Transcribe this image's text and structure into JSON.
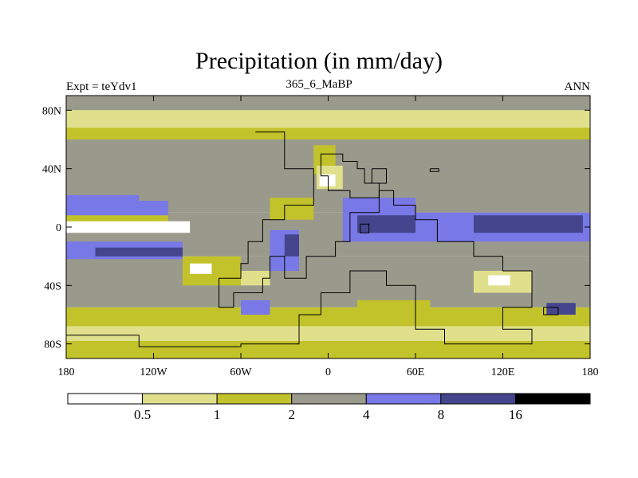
{
  "chart_data": {
    "type": "heatmap",
    "title": "Precipitation (in mm/day)",
    "subtitle_left": "Expt = teYdv1",
    "subtitle_center": "365_6_MaBP",
    "subtitle_right": "ANN",
    "x_ticks": [
      {
        "value": -180,
        "label": "180"
      },
      {
        "value": -120,
        "label": "120W"
      },
      {
        "value": -60,
        "label": "60W"
      },
      {
        "value": 0,
        "label": "0"
      },
      {
        "value": 60,
        "label": "60E"
      },
      {
        "value": 120,
        "label": "120E"
      },
      {
        "value": 180,
        "label": "180"
      }
    ],
    "y_ticks": [
      {
        "value": 80,
        "label": "80N"
      },
      {
        "value": 40,
        "label": "40N"
      },
      {
        "value": 0,
        "label": "0"
      },
      {
        "value": -40,
        "label": "40S"
      },
      {
        "value": -80,
        "label": "80S"
      }
    ],
    "xlim": [
      -180,
      180
    ],
    "ylim": [
      -90,
      90
    ],
    "colorbar": {
      "colors": [
        "#ffffff",
        "#e0e08c",
        "#c2c22a",
        "#9a9a8c",
        "#7878e6",
        "#45458e",
        "#000000"
      ],
      "boundaries": [
        "0.5",
        "1",
        "2",
        "4",
        "8",
        "16"
      ]
    },
    "zonal_bands": [
      {
        "lat_top": 90,
        "lat_bottom": 80,
        "level": 3
      },
      {
        "lat_top": 80,
        "lat_bottom": 68,
        "level": 1
      },
      {
        "lat_top": 68,
        "lat_bottom": 60,
        "level": 2
      },
      {
        "lat_top": 60,
        "lat_bottom": 10,
        "level": 3
      },
      {
        "lat_top": 10,
        "lat_bottom": -20,
        "level": 3
      },
      {
        "lat_top": -20,
        "lat_bottom": -55,
        "level": 3
      },
      {
        "lat_top": -55,
        "lat_bottom": -68,
        "level": 2
      },
      {
        "lat_top": -68,
        "lat_bottom": -78,
        "level": 1
      },
      {
        "lat_top": -78,
        "lat_bottom": -90,
        "level": 2
      }
    ],
    "patches": [
      {
        "lon": [
          -180,
          -110,
          -110,
          -180
        ],
        "lat": [
          18,
          18,
          2,
          2
        ],
        "level": 4
      },
      {
        "lon": [
          -180,
          -110,
          -110,
          -180
        ],
        "lat": [
          8,
          8,
          -2,
          -2
        ],
        "level": 2
      },
      {
        "lon": [
          -180,
          -95,
          -95,
          -180
        ],
        "lat": [
          4,
          4,
          -4,
          -4
        ],
        "level": 0
      },
      {
        "lon": [
          -180,
          -100,
          -100,
          -180
        ],
        "lat": [
          -10,
          -10,
          -22,
          -22
        ],
        "level": 4
      },
      {
        "lon": [
          -160,
          -100,
          -100,
          -160
        ],
        "lat": [
          -14,
          -14,
          -20,
          -20
        ],
        "level": 5
      },
      {
        "lon": [
          -40,
          -20,
          -20,
          -40
        ],
        "lat": [
          -2,
          -2,
          -30,
          -30
        ],
        "level": 4
      },
      {
        "lon": [
          -30,
          -20,
          -20,
          -30
        ],
        "lat": [
          -5,
          -5,
          -20,
          -20
        ],
        "level": 5
      },
      {
        "lon": [
          -10,
          5,
          5,
          -10
        ],
        "lat": [
          56,
          56,
          36,
          36
        ],
        "level": 2
      },
      {
        "lon": [
          -8,
          10,
          10,
          -8
        ],
        "lat": [
          42,
          42,
          26,
          26
        ],
        "level": 1
      },
      {
        "lon": [
          -6,
          5,
          5,
          -6
        ],
        "lat": [
          36,
          36,
          28,
          28
        ],
        "level": 0
      },
      {
        "lon": [
          10,
          60,
          60,
          10
        ],
        "lat": [
          20,
          20,
          -10,
          -10
        ],
        "level": 4
      },
      {
        "lon": [
          20,
          60,
          60,
          20
        ],
        "lat": [
          8,
          8,
          -4,
          -4
        ],
        "level": 5
      },
      {
        "lon": [
          60,
          180,
          180,
          60
        ],
        "lat": [
          10,
          10,
          -10,
          -10
        ],
        "level": 4
      },
      {
        "lon": [
          100,
          175,
          175,
          100
        ],
        "lat": [
          8,
          8,
          -4,
          -4
        ],
        "level": 5
      },
      {
        "lon": [
          -180,
          -130,
          -130,
          -180
        ],
        "lat": [
          22,
          22,
          14,
          14
        ],
        "level": 4
      },
      {
        "lon": [
          -100,
          -60,
          -60,
          -100
        ],
        "lat": [
          -20,
          -20,
          -40,
          -40
        ],
        "level": 2
      },
      {
        "lon": [
          -95,
          -80,
          -80,
          -95
        ],
        "lat": [
          -25,
          -25,
          -32,
          -32
        ],
        "level": 0
      },
      {
        "lon": [
          -60,
          -40,
          -40,
          -60
        ],
        "lat": [
          -30,
          -30,
          -40,
          -40
        ],
        "level": 1
      },
      {
        "lon": [
          100,
          140,
          140,
          100
        ],
        "lat": [
          -30,
          -30,
          -45,
          -45
        ],
        "level": 1
      },
      {
        "lon": [
          110,
          125,
          125,
          110
        ],
        "lat": [
          -33,
          -33,
          -40,
          -40
        ],
        "level": 0
      },
      {
        "lon": [
          -40,
          -10,
          -10,
          -40
        ],
        "lat": [
          20,
          20,
          5,
          5
        ],
        "level": 2
      },
      {
        "lon": [
          20,
          70,
          70,
          20
        ],
        "lat": [
          -50,
          -50,
          -65,
          -65
        ],
        "level": 2
      },
      {
        "lon": [
          -150,
          -80,
          -80,
          -150
        ],
        "lat": [
          -85,
          -85,
          -90,
          -90
        ],
        "level": 2
      },
      {
        "lon": [
          -60,
          -40,
          -40,
          -60
        ],
        "lat": [
          -50,
          -50,
          -60,
          -60
        ],
        "level": 4
      },
      {
        "lon": [
          150,
          170,
          170,
          150
        ],
        "lat": [
          -52,
          -52,
          -60,
          -60
        ],
        "level": 5
      }
    ],
    "coastlines": [
      [
        [
          -50,
          65
        ],
        [
          -30,
          65
        ],
        [
          -30,
          40
        ],
        [
          -10,
          40
        ],
        [
          -10,
          15
        ],
        [
          -30,
          15
        ],
        [
          -30,
          5
        ],
        [
          -45,
          5
        ],
        [
          -45,
          -10
        ],
        [
          -55,
          -10
        ],
        [
          -55,
          -25
        ],
        [
          -60,
          -25
        ],
        [
          -60,
          -35
        ],
        [
          -75,
          -35
        ],
        [
          -75,
          -55
        ],
        [
          -65,
          -55
        ],
        [
          -65,
          -45
        ],
        [
          -45,
          -45
        ],
        [
          -45,
          -35
        ],
        [
          -40,
          -35
        ],
        [
          -40,
          -20
        ],
        [
          -30,
          -20
        ],
        [
          -30,
          -35
        ],
        [
          -15,
          -35
        ],
        [
          -15,
          -20
        ],
        [
          5,
          -20
        ],
        [
          5,
          -10
        ],
        [
          15,
          -10
        ],
        [
          15,
          10
        ],
        [
          35,
          10
        ],
        [
          35,
          25
        ],
        [
          45,
          25
        ],
        [
          45,
          15
        ],
        [
          60,
          15
        ],
        [
          60,
          5
        ],
        [
          75,
          5
        ],
        [
          75,
          -10
        ],
        [
          100,
          -10
        ],
        [
          100,
          -20
        ],
        [
          120,
          -20
        ],
        [
          120,
          -30
        ],
        [
          140,
          -30
        ],
        [
          140,
          -55
        ],
        [
          120,
          -55
        ],
        [
          120,
          -70
        ],
        [
          140,
          -70
        ],
        [
          140,
          -80
        ],
        [
          80,
          -80
        ],
        [
          80,
          -70
        ],
        [
          60,
          -70
        ],
        [
          60,
          -40
        ],
        [
          40,
          -40
        ],
        [
          40,
          -30
        ],
        [
          15,
          -30
        ],
        [
          15,
          -45
        ],
        [
          -5,
          -45
        ],
        [
          -5,
          -60
        ],
        [
          -20,
          -60
        ],
        [
          -20,
          -80
        ],
        [
          -60,
          -80
        ],
        [
          -60,
          -82
        ],
        [
          -130,
          -82
        ],
        [
          -130,
          -74
        ],
        [
          -180,
          -74
        ]
      ],
      [
        [
          0,
          50
        ],
        [
          10,
          50
        ],
        [
          10,
          45
        ],
        [
          20,
          45
        ],
        [
          20,
          40
        ],
        [
          25,
          40
        ],
        [
          25,
          30
        ],
        [
          35,
          30
        ],
        [
          35,
          20
        ],
        [
          15,
          20
        ],
        [
          15,
          25
        ],
        [
          0,
          25
        ],
        [
          0,
          35
        ],
        [
          -5,
          35
        ],
        [
          -5,
          50
        ],
        [
          0,
          50
        ]
      ],
      [
        [
          30,
          40
        ],
        [
          40,
          40
        ],
        [
          40,
          30
        ],
        [
          30,
          30
        ],
        [
          30,
          40
        ]
      ],
      [
        [
          22,
          2
        ],
        [
          28,
          2
        ],
        [
          28,
          -4
        ],
        [
          22,
          -4
        ],
        [
          22,
          2
        ]
      ],
      [
        [
          148,
          -55
        ],
        [
          158,
          -55
        ],
        [
          158,
          -60
        ],
        [
          148,
          -60
        ],
        [
          148,
          -55
        ]
      ],
      [
        [
          70,
          40
        ],
        [
          76,
          40
        ],
        [
          76,
          38
        ],
        [
          70,
          38
        ],
        [
          70,
          40
        ]
      ]
    ]
  }
}
